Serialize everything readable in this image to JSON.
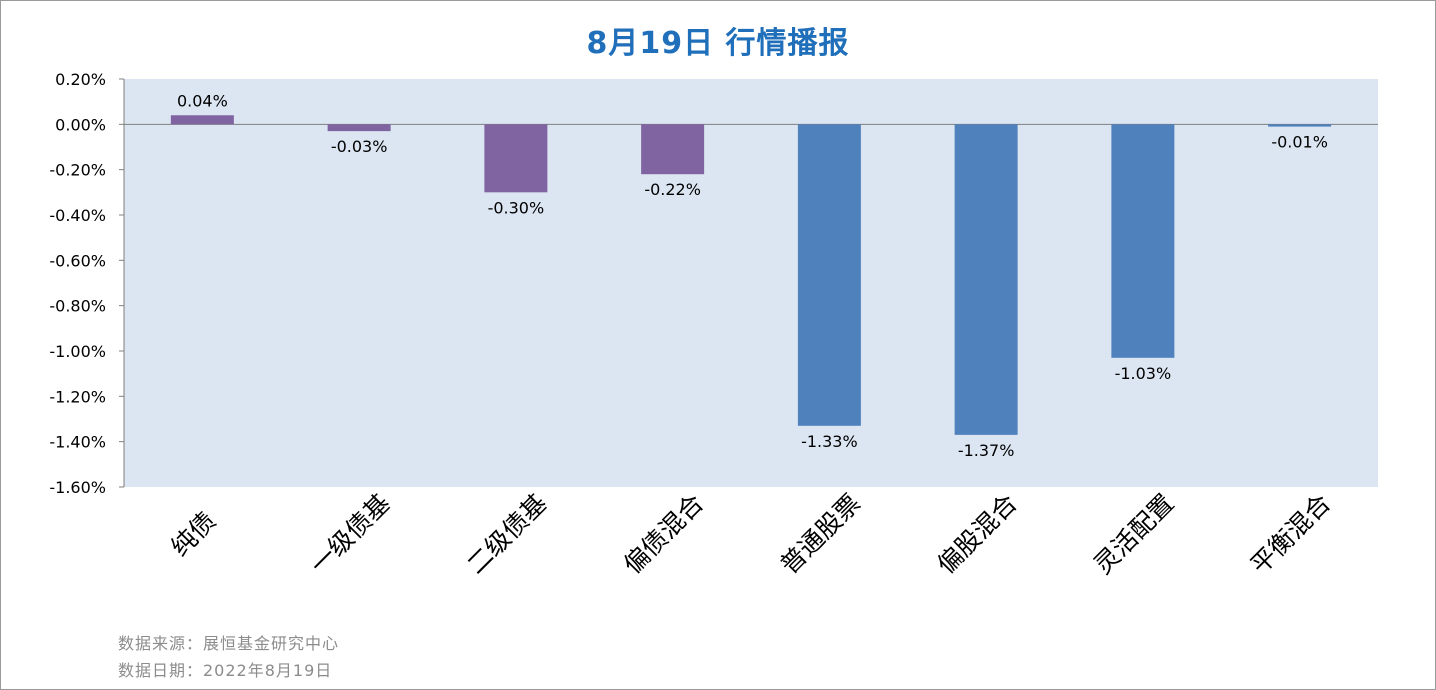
{
  "title": "8月19日  行情播报",
  "chart_data": {
    "type": "bar",
    "categories": [
      "纯债",
      "一级债基",
      "二级债基",
      "偏债混合",
      "普通股票",
      "偏股混合",
      "灵活配置",
      "平衡混合"
    ],
    "values": [
      0.04,
      -0.03,
      -0.3,
      -0.22,
      -1.33,
      -1.37,
      -1.03,
      -0.01
    ],
    "data_labels": [
      "0.04%",
      "-0.03%",
      "-0.30%",
      "-0.22%",
      "-1.33%",
      "-1.37%",
      "-1.03%",
      "-0.01%"
    ],
    "bar_colors": [
      "#8064a2",
      "#8064a2",
      "#8064a2",
      "#8064a2",
      "#4f81bd",
      "#4f81bd",
      "#4f81bd",
      "#4f81bd"
    ],
    "plot_background": "#dce6f2",
    "ylim": [
      -1.6,
      0.2
    ],
    "yticks": [
      0.2,
      0.0,
      -0.2,
      -0.4,
      -0.6,
      -0.8,
      -1.0,
      -1.2,
      -1.4,
      -1.6
    ],
    "ytick_labels": [
      "0.20%",
      "0.00%",
      "-0.20%",
      "-0.40%",
      "-0.60%",
      "-0.80%",
      "-1.00%",
      "-1.20%",
      "-1.40%",
      "-1.60%"
    ],
    "grid": false,
    "legend": false
  },
  "footer": {
    "source": "数据来源：展恒基金研究中心",
    "date": "数据日期：2022年8月19日"
  }
}
